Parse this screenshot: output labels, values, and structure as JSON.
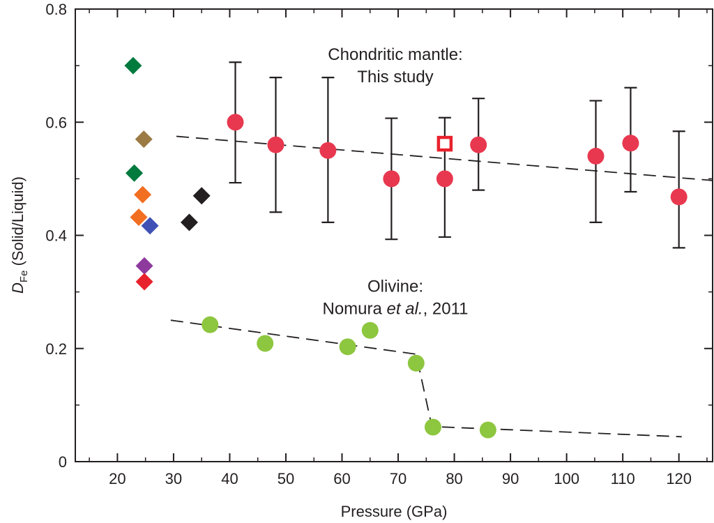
{
  "chart_data": {
    "type": "scatter",
    "xlabel": "Pressure (GPa)",
    "ylabel": {
      "symbol": "D",
      "subscript": "Fe",
      "rest": " (Solid/Liquid)"
    },
    "xlim": [
      12.5,
      126
    ],
    "ylim": [
      0,
      0.8
    ],
    "x_ticks": [
      "20",
      "30",
      "40",
      "50",
      "60",
      "70",
      "80",
      "90",
      "100",
      "110",
      "120"
    ],
    "x_tick_values": [
      20,
      30,
      40,
      50,
      60,
      70,
      80,
      90,
      100,
      110,
      120
    ],
    "y_ticks": [
      "0",
      "0.2",
      "0.4",
      "0.6",
      "0.8"
    ],
    "y_tick_values": [
      0,
      0.2,
      0.4,
      0.6,
      0.8
    ],
    "grid": false,
    "annotations": [
      {
        "lines": [
          "Chondritic mantle:",
          "This study"
        ],
        "x": 69.5,
        "y": 0.71
      },
      {
        "lines": [
          "Olivine:",
          "Nomura et al., 2011"
        ],
        "x": 69.5,
        "y": 0.3,
        "italic_part": "et al."
      }
    ],
    "series": [
      {
        "marker": "circle",
        "color": "#e8384f",
        "points": [
          {
            "x": 41.0,
            "y": 0.6,
            "err": [
              0.493,
              0.706
            ]
          },
          {
            "x": 48.2,
            "y": 0.56,
            "err": [
              0.441,
              0.679
            ]
          },
          {
            "x": 57.5,
            "y": 0.55,
            "err": [
              0.423,
              0.679
            ]
          },
          {
            "x": 68.8,
            "y": 0.5,
            "err": [
              0.393,
              0.607
            ]
          },
          {
            "x": 78.3,
            "y": 0.5,
            "err": [
              0.397,
              0.608
            ]
          },
          {
            "x": 84.3,
            "y": 0.56,
            "err": [
              0.48,
              0.642
            ]
          },
          {
            "x": 105.2,
            "y": 0.54,
            "err": [
              0.423,
              0.638
            ]
          },
          {
            "x": 111.4,
            "y": 0.563,
            "err": [
              0.477,
              0.661
            ]
          },
          {
            "x": 120.0,
            "y": 0.468,
            "err": [
              0.378,
              0.584
            ]
          }
        ]
      },
      {
        "marker": "open-square",
        "color": "#e8222d",
        "points": [
          {
            "x": 78.3,
            "y": 0.562
          }
        ]
      },
      {
        "marker": "circle",
        "color": "#8dc63f",
        "points": [
          {
            "x": 36.5,
            "y": 0.242
          },
          {
            "x": 46.3,
            "y": 0.209
          },
          {
            "x": 61.0,
            "y": 0.203
          },
          {
            "x": 65.0,
            "y": 0.232
          },
          {
            "x": 73.2,
            "y": 0.174
          },
          {
            "x": 76.2,
            "y": 0.061
          },
          {
            "x": 86.0,
            "y": 0.056
          }
        ]
      },
      {
        "marker": "diamond",
        "color": "multi",
        "points": [
          {
            "x": 22.8,
            "y": 0.7,
            "color": "#007a3d"
          },
          {
            "x": 24.7,
            "y": 0.57,
            "color": "#9b7a44"
          },
          {
            "x": 23.0,
            "y": 0.51,
            "color": "#007a3d"
          },
          {
            "x": 24.5,
            "y": 0.472,
            "color": "#f26e21"
          },
          {
            "x": 23.8,
            "y": 0.432,
            "color": "#f26e21"
          },
          {
            "x": 25.8,
            "y": 0.417,
            "color": "#3f51b5"
          },
          {
            "x": 24.8,
            "y": 0.346,
            "color": "#8e3a9d"
          },
          {
            "x": 24.8,
            "y": 0.318,
            "color": "#e8222d"
          },
          {
            "x": 32.8,
            "y": 0.423,
            "color": "#231f20"
          },
          {
            "x": 35.0,
            "y": 0.47,
            "color": "#231f20"
          }
        ]
      }
    ],
    "fit_lines": [
      {
        "points": [
          [
            30.5,
            0.575
          ],
          [
            126,
            0.497
          ]
        ]
      },
      {
        "points": [
          [
            29.5,
            0.25
          ],
          [
            73.2,
            0.19
          ],
          [
            76.0,
            0.062
          ],
          [
            120.5,
            0.044
          ]
        ]
      }
    ]
  }
}
